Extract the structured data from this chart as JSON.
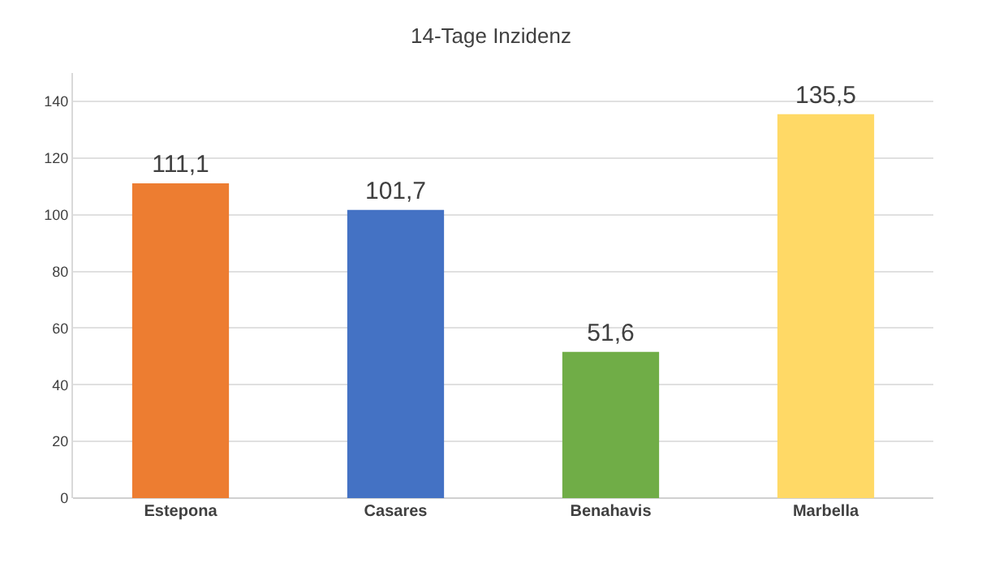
{
  "chart_data": {
    "type": "bar",
    "title": "14-Tage Inzidenz",
    "categories": [
      "Estepona",
      "Casares",
      "Benahavis",
      "Marbella"
    ],
    "values": [
      111.1,
      101.7,
      51.6,
      135.5
    ],
    "value_labels": [
      "111,1",
      "101,7",
      "51,6",
      "135,5"
    ],
    "colors": [
      "#ed7d31",
      "#4472c4",
      "#70ad47",
      "#ffd966"
    ],
    "ylim": [
      0,
      150
    ],
    "yticks": [
      0,
      20,
      40,
      60,
      80,
      100,
      120,
      140
    ],
    "grid": "y"
  }
}
